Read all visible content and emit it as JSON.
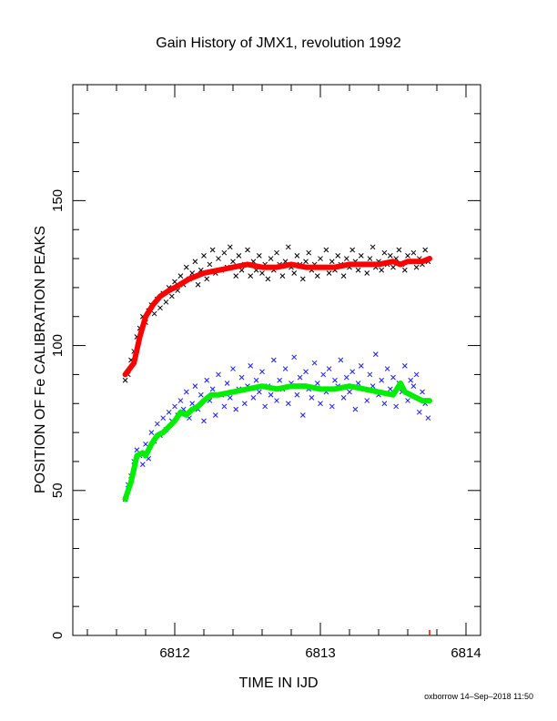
{
  "chart_data": {
    "type": "scatter",
    "title": "Gain History of JMX1, revolution 1992",
    "xlabel": "TIME IN IJD",
    "ylabel": "POSITION OF Fe CALIBRATION PEAKS",
    "xlim": [
      6811.3,
      6814.1
    ],
    "ylim": [
      0,
      190
    ],
    "x_ticks": [
      6812,
      6813,
      6814
    ],
    "y_ticks": [
      0,
      50,
      100,
      150
    ],
    "grid": false,
    "colors": {
      "upper_raw": "#000000",
      "upper_fit": "#ff0000",
      "lower_raw": "#1a1aff",
      "lower_fit": "#00ee00"
    },
    "series": [
      {
        "id": "upper_raw",
        "marker": "x",
        "x": [
          6811.66,
          6811.68,
          6811.7,
          6811.72,
          6811.74,
          6811.76,
          6811.78,
          6811.8,
          6811.82,
          6811.84,
          6811.86,
          6811.88,
          6811.9,
          6811.92,
          6811.94,
          6811.96,
          6811.98,
          6812.0,
          6812.02,
          6812.04,
          6812.06,
          6812.08,
          6812.1,
          6812.12,
          6812.14,
          6812.16,
          6812.18,
          6812.2,
          6812.22,
          6812.24,
          6812.26,
          6812.28,
          6812.3,
          6812.32,
          6812.34,
          6812.36,
          6812.38,
          6812.4,
          6812.42,
          6812.44,
          6812.46,
          6812.48,
          6812.5,
          6812.52,
          6812.54,
          6812.56,
          6812.58,
          6812.6,
          6812.62,
          6812.64,
          6812.66,
          6812.68,
          6812.7,
          6812.72,
          6812.74,
          6812.76,
          6812.78,
          6812.8,
          6812.82,
          6812.84,
          6812.86,
          6812.88,
          6812.9,
          6812.92,
          6812.94,
          6812.96,
          6812.98,
          6813.0,
          6813.02,
          6813.04,
          6813.06,
          6813.08,
          6813.1,
          6813.12,
          6813.14,
          6813.16,
          6813.18,
          6813.2,
          6813.22,
          6813.24,
          6813.26,
          6813.28,
          6813.3,
          6813.32,
          6813.34,
          6813.36,
          6813.38,
          6813.4,
          6813.42,
          6813.44,
          6813.46,
          6813.48,
          6813.5,
          6813.52,
          6813.54,
          6813.56,
          6813.58,
          6813.6,
          6813.62,
          6813.64,
          6813.66,
          6813.68,
          6813.7,
          6813.72,
          6813.74
        ],
        "y": [
          88,
          90,
          95,
          98,
          103,
          106,
          110,
          108,
          112,
          114,
          111,
          116,
          113,
          118,
          115,
          120,
          117,
          122,
          119,
          124,
          121,
          127,
          123,
          125,
          129,
          121,
          126,
          131,
          123,
          128,
          133,
          125,
          130,
          126,
          132,
          127,
          134,
          129,
          124,
          131,
          126,
          128,
          133,
          124,
          129,
          126,
          131,
          125,
          128,
          123,
          130,
          126,
          132,
          128,
          124,
          129,
          134,
          127,
          125,
          131,
          128,
          123,
          129,
          132,
          126,
          128,
          124,
          130,
          127,
          133,
          125,
          129,
          126,
          131,
          128,
          124,
          130,
          127,
          133,
          129,
          126,
          131,
          128,
          125,
          130,
          134,
          127,
          129,
          126,
          132,
          128,
          131,
          127,
          130,
          133,
          128,
          126,
          131,
          129,
          132,
          127,
          130,
          128,
          133,
          129
        ]
      },
      {
        "id": "upper_fit",
        "marker": "line",
        "x": [
          6811.66,
          6811.72,
          6811.76,
          6811.8,
          6811.85,
          6811.9,
          6811.96,
          6812.0,
          6812.1,
          6812.2,
          6812.3,
          6812.4,
          6812.5,
          6812.6,
          6812.7,
          6812.8,
          6812.9,
          6813.0,
          6813.1,
          6813.2,
          6813.3,
          6813.4,
          6813.5,
          6813.55,
          6813.6,
          6813.7,
          6813.75
        ],
        "y": [
          90,
          94,
          103,
          110,
          114,
          117,
          119,
          120,
          123,
          125,
          126,
          127,
          128,
          127,
          127,
          128,
          127,
          127,
          127,
          128,
          128,
          128,
          129,
          128,
          129,
          129,
          130
        ]
      },
      {
        "id": "lower_raw",
        "marker": "x",
        "x": [
          6811.66,
          6811.68,
          6811.7,
          6811.72,
          6811.74,
          6811.76,
          6811.78,
          6811.8,
          6811.82,
          6811.84,
          6811.86,
          6811.88,
          6811.9,
          6811.92,
          6811.94,
          6811.96,
          6811.98,
          6812.0,
          6812.02,
          6812.04,
          6812.06,
          6812.08,
          6812.1,
          6812.12,
          6812.14,
          6812.16,
          6812.18,
          6812.2,
          6812.22,
          6812.24,
          6812.26,
          6812.28,
          6812.3,
          6812.32,
          6812.34,
          6812.36,
          6812.38,
          6812.4,
          6812.42,
          6812.44,
          6812.46,
          6812.48,
          6812.5,
          6812.52,
          6812.54,
          6812.56,
          6812.58,
          6812.6,
          6812.62,
          6812.64,
          6812.66,
          6812.68,
          6812.7,
          6812.72,
          6812.74,
          6812.76,
          6812.78,
          6812.8,
          6812.82,
          6812.84,
          6812.86,
          6812.88,
          6812.9,
          6812.92,
          6812.94,
          6812.96,
          6812.98,
          6813.0,
          6813.02,
          6813.04,
          6813.06,
          6813.08,
          6813.1,
          6813.12,
          6813.14,
          6813.16,
          6813.18,
          6813.2,
          6813.22,
          6813.24,
          6813.26,
          6813.28,
          6813.3,
          6813.32,
          6813.34,
          6813.36,
          6813.38,
          6813.4,
          6813.42,
          6813.44,
          6813.46,
          6813.48,
          6813.5,
          6813.52,
          6813.54,
          6813.56,
          6813.58,
          6813.6,
          6813.62,
          6813.64,
          6813.66,
          6813.68,
          6813.7,
          6813.72,
          6813.74
        ],
        "y": [
          47,
          52,
          55,
          60,
          64,
          62,
          59,
          66,
          61,
          70,
          67,
          73,
          69,
          75,
          71,
          77,
          74,
          79,
          76,
          81,
          78,
          84,
          75,
          80,
          86,
          78,
          83,
          74,
          88,
          81,
          85,
          76,
          90,
          83,
          79,
          87,
          82,
          92,
          78,
          85,
          89,
          80,
          86,
          93,
          82,
          88,
          84,
          91,
          79,
          86,
          83,
          95,
          81,
          88,
          85,
          92,
          80,
          87,
          96,
          83,
          89,
          76,
          91,
          85,
          82,
          94,
          87,
          80,
          90,
          84,
          92,
          79,
          88,
          86,
          95,
          82,
          89,
          84,
          91,
          78,
          87,
          93,
          85,
          81,
          90,
          86,
          97,
          83,
          88,
          80,
          92,
          85,
          89,
          79,
          87,
          84,
          93,
          81,
          88,
          86,
          90,
          77,
          84,
          80,
          75
        ]
      },
      {
        "id": "lower_fit",
        "marker": "line",
        "x": [
          6811.66,
          6811.7,
          6811.74,
          6811.78,
          6811.8,
          6811.84,
          6811.88,
          6811.92,
          6811.96,
          6812.0,
          6812.04,
          6812.08,
          6812.12,
          6812.16,
          6812.2,
          6812.25,
          6812.3,
          6812.4,
          6812.5,
          6812.6,
          6812.7,
          6812.8,
          6812.9,
          6813.0,
          6813.1,
          6813.2,
          6813.3,
          6813.4,
          6813.5,
          6813.55,
          6813.58,
          6813.62,
          6813.66,
          6813.7,
          6813.75
        ],
        "y": [
          47,
          53,
          62,
          63,
          62,
          66,
          69,
          70,
          72,
          74,
          77,
          76,
          78,
          79,
          81,
          83,
          83,
          84,
          85,
          86,
          85,
          86,
          86,
          85,
          85,
          86,
          85,
          84,
          83,
          87,
          84,
          83,
          82,
          81,
          81
        ]
      }
    ],
    "extra_marks": [
      {
        "x": 6813.75,
        "y": 0,
        "color": "#ff0000",
        "marker": "|"
      }
    ]
  },
  "footer": "oxborrow 14–Sep–2018 11:50"
}
